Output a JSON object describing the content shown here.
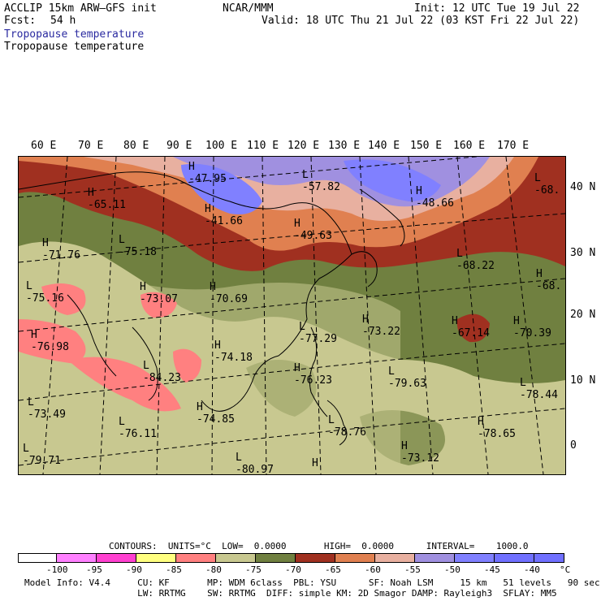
{
  "header": {
    "model_line": "ACCLIP 15km ARW–GFS init",
    "fcst_label": "Fcst:",
    "fcst_value": "54 h",
    "org": "NCAR/MMM",
    "init": "Init: 12 UTC Tue 19 Jul 22",
    "valid": "Valid: 18 UTC Thu 21 Jul 22 (03 KST Fri 22 Jul 22)",
    "field_title_1": "Tropopause temperature",
    "field_title_2": "Tropopause temperature"
  },
  "map": {
    "lon_labels": [
      "60 E",
      "70 E",
      "80 E",
      "90 E",
      "100 E",
      "110 E",
      "120 E",
      "130 E",
      "140 E",
      "150 E",
      "160 E",
      "170 E"
    ],
    "lat_labels": [
      "40 N",
      "30 N",
      "20 N",
      "10 N",
      "0"
    ],
    "extrema": [
      {
        "type": "H",
        "value": "-47.95"
      },
      {
        "type": "L",
        "value": "-57.82"
      },
      {
        "type": "H",
        "value": "-48.66"
      },
      {
        "type": "L",
        "value": "-68."
      },
      {
        "type": "H",
        "value": "-65.11"
      },
      {
        "type": "H",
        "value": "-41.66"
      },
      {
        "type": "H",
        "value": "-49.63"
      },
      {
        "type": "H",
        "value": "-71.76"
      },
      {
        "type": "L",
        "value": "-75.18"
      },
      {
        "type": "L",
        "value": "-68.22"
      },
      {
        "type": "H",
        "value": "-68."
      },
      {
        "type": "L",
        "value": "-75.16"
      },
      {
        "type": "H",
        "value": "-73.07"
      },
      {
        "type": "H",
        "value": "-70.69"
      },
      {
        "type": "H",
        "value": "-73.22"
      },
      {
        "type": "H",
        "value": "-67.14"
      },
      {
        "type": "H",
        "value": "-70.39"
      },
      {
        "type": "H",
        "value": "-76.98"
      },
      {
        "type": "H",
        "value": "-74.18"
      },
      {
        "type": "L",
        "value": "-77.29"
      },
      {
        "type": "L",
        "value": "-84.23"
      },
      {
        "type": "H",
        "value": "-76.23"
      },
      {
        "type": "L",
        "value": "-79.63"
      },
      {
        "type": "L",
        "value": "-78.44"
      },
      {
        "type": "L",
        "value": "-73.49"
      },
      {
        "type": "H",
        "value": "-74.85"
      },
      {
        "type": "L",
        "value": "-76.11"
      },
      {
        "type": "L",
        "value": "-78.76"
      },
      {
        "type": "H",
        "value": "-78.65"
      },
      {
        "type": "L",
        "value": "-79.71"
      },
      {
        "type": "H",
        "value": "-73.12"
      },
      {
        "type": "L",
        "value": "-80.97"
      },
      {
        "type": "H",
        "value": ""
      }
    ]
  },
  "colorbar": {
    "info": "CONTOURS:  UNITS=°C  LOW=  0.0000       HIGH=  0.0000      INTERVAL=    1000.0",
    "ticks": [
      "-100",
      "-95",
      "-90",
      "-85",
      "-80",
      "-75",
      "-70",
      "-65",
      "-60",
      "-55",
      "-50",
      "-45",
      "-40",
      "°C"
    ],
    "colors": [
      "#ffffff",
      "#ff80ff",
      "#ff40d0",
      "#ffff80",
      "#ff8080",
      "#c8c890",
      "#708040",
      "#a03020",
      "#e08050",
      "#e8b0a0",
      "#a090e0",
      "#8080ff",
      "#7070ff"
    ]
  },
  "footer": {
    "line1": "Model Info: V4.4     CU: KF       MP: WDM 6class  PBL: YSU      SF: Noah LSM     15 km   51 levels   90 sec",
    "line2": "                     LW: RRTMG    SW: RRTMG  DIFF: simple KM: 2D Smagor DAMP: Rayleigh3  SFLAY: MM5"
  }
}
